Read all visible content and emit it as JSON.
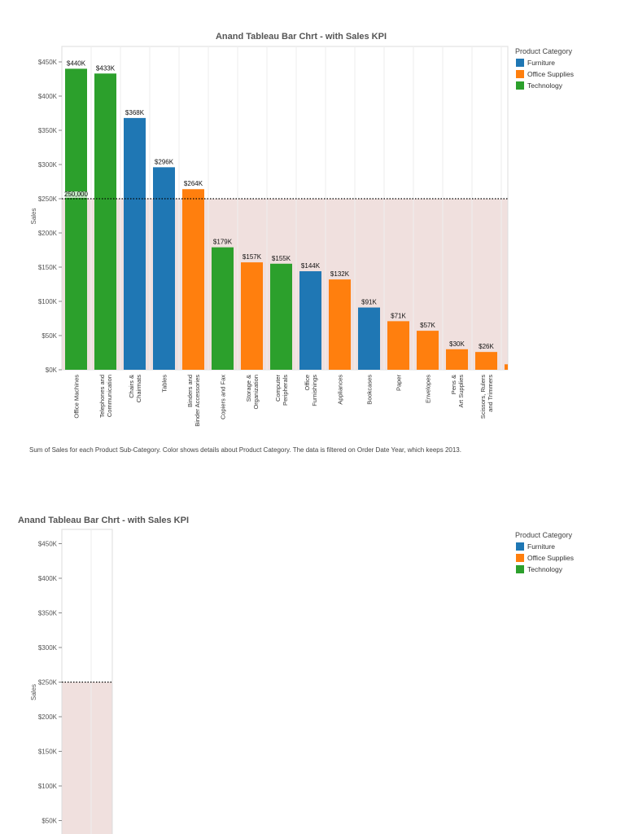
{
  "chart_data": [
    {
      "type": "bar",
      "title": "Anand Tableau Bar Chrt - with Sales KPI",
      "ylabel": "Sales",
      "xlabel": "",
      "ylim": [
        0,
        470000
      ],
      "yticks": [
        "$0K",
        "$50K",
        "$100K",
        "$150K",
        "$200K",
        "$250K",
        "$300K",
        "$350K",
        "$400K",
        "$450K"
      ],
      "grid": true,
      "legend": {
        "title": "Product Category",
        "position": "right",
        "entries": [
          {
            "name": "Furniture",
            "color": "#1f77b4"
          },
          {
            "name": "Office Supplies",
            "color": "#ff7f0e"
          },
          {
            "name": "Technology",
            "color": "#2ca02c"
          }
        ]
      },
      "reference_line": {
        "value": 250000,
        "label": "250,000",
        "band_color": "#f0e0de"
      },
      "categories": [
        "Office Machines",
        "Telephones and Communication",
        "Chairs & Chairmats",
        "Tables",
        "Binders and Binder Accessories",
        "Copiers and Fax",
        "Storage & Organization",
        "Computer Peripherals",
        "Office Furnishings",
        "Appliances",
        "Bookcases",
        "Paper",
        "Envelopes",
        "Pens & Art Supplies",
        "Scissors, Rulers and Trimmers",
        ""
      ],
      "values": [
        440000,
        433000,
        368000,
        296000,
        264000,
        179000,
        157000,
        155000,
        144000,
        132000,
        91000,
        71000,
        57000,
        30000,
        26000,
        8000
      ],
      "data_labels": [
        "$440K",
        "$433K",
        "$368K",
        "$296K",
        "$264K",
        "$179K",
        "$157K",
        "$155K",
        "$144K",
        "$132K",
        "$91K",
        "$71K",
        "$57K",
        "$30K",
        "$26K",
        ""
      ],
      "category_group": [
        "Technology",
        "Technology",
        "Furniture",
        "Furniture",
        "Office Supplies",
        "Technology",
        "Office Supplies",
        "Technology",
        "Furniture",
        "Office Supplies",
        "Furniture",
        "Office Supplies",
        "Office Supplies",
        "Office Supplies",
        "Office Supplies",
        "Office Supplies"
      ],
      "caption": "Sum of Sales for each Product Sub-Category.  Color shows details about Product Category. The data is filtered on Order Date Year, which keeps 2013."
    },
    {
      "type": "bar",
      "title": "Anand Tableau Bar Chrt - with Sales KPI",
      "ylabel": "Sales",
      "ylim": [
        0,
        470000
      ],
      "yticks": [
        "$50K",
        "$100K",
        "$150K",
        "$200K",
        "$250K",
        "$300K",
        "$350K",
        "$400K",
        "$450K"
      ],
      "legend": {
        "title": "Product Category",
        "position": "right",
        "entries": [
          {
            "name": "Furniture",
            "color": "#1f77b4"
          },
          {
            "name": "Office Supplies",
            "color": "#ff7f0e"
          },
          {
            "name": "Technology",
            "color": "#2ca02c"
          }
        ]
      },
      "reference_line": {
        "value": 250000,
        "band_color": "#f0e0de"
      },
      "categories": [],
      "values": []
    }
  ]
}
